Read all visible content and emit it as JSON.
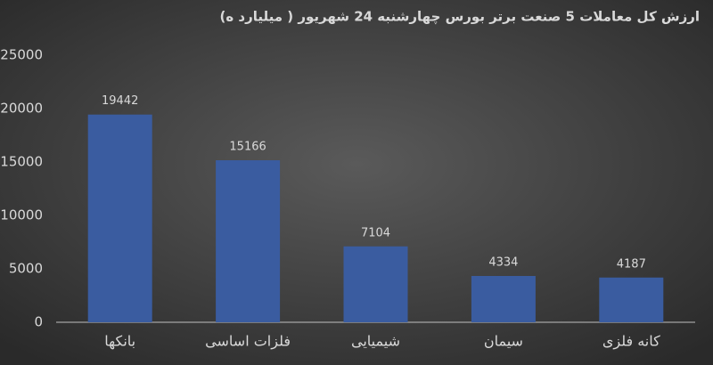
{
  "chart_data": {
    "type": "bar",
    "title": "ارزش کل معاملات 5 صنعت برتر بورس چهارشنبه 24 شهریور ( میلیارد ه)",
    "categories": [
      "بانکها",
      "فلزات اساسی",
      "شیمیایی",
      "سیمان",
      "کانه فلزی"
    ],
    "values": [
      19442,
      15166,
      7104,
      4334,
      4187
    ],
    "color": "#3a5ca0",
    "ylim": [
      0,
      25000
    ],
    "yticks": [
      0,
      5000,
      10000,
      15000,
      20000,
      25000
    ],
    "grid": false
  }
}
